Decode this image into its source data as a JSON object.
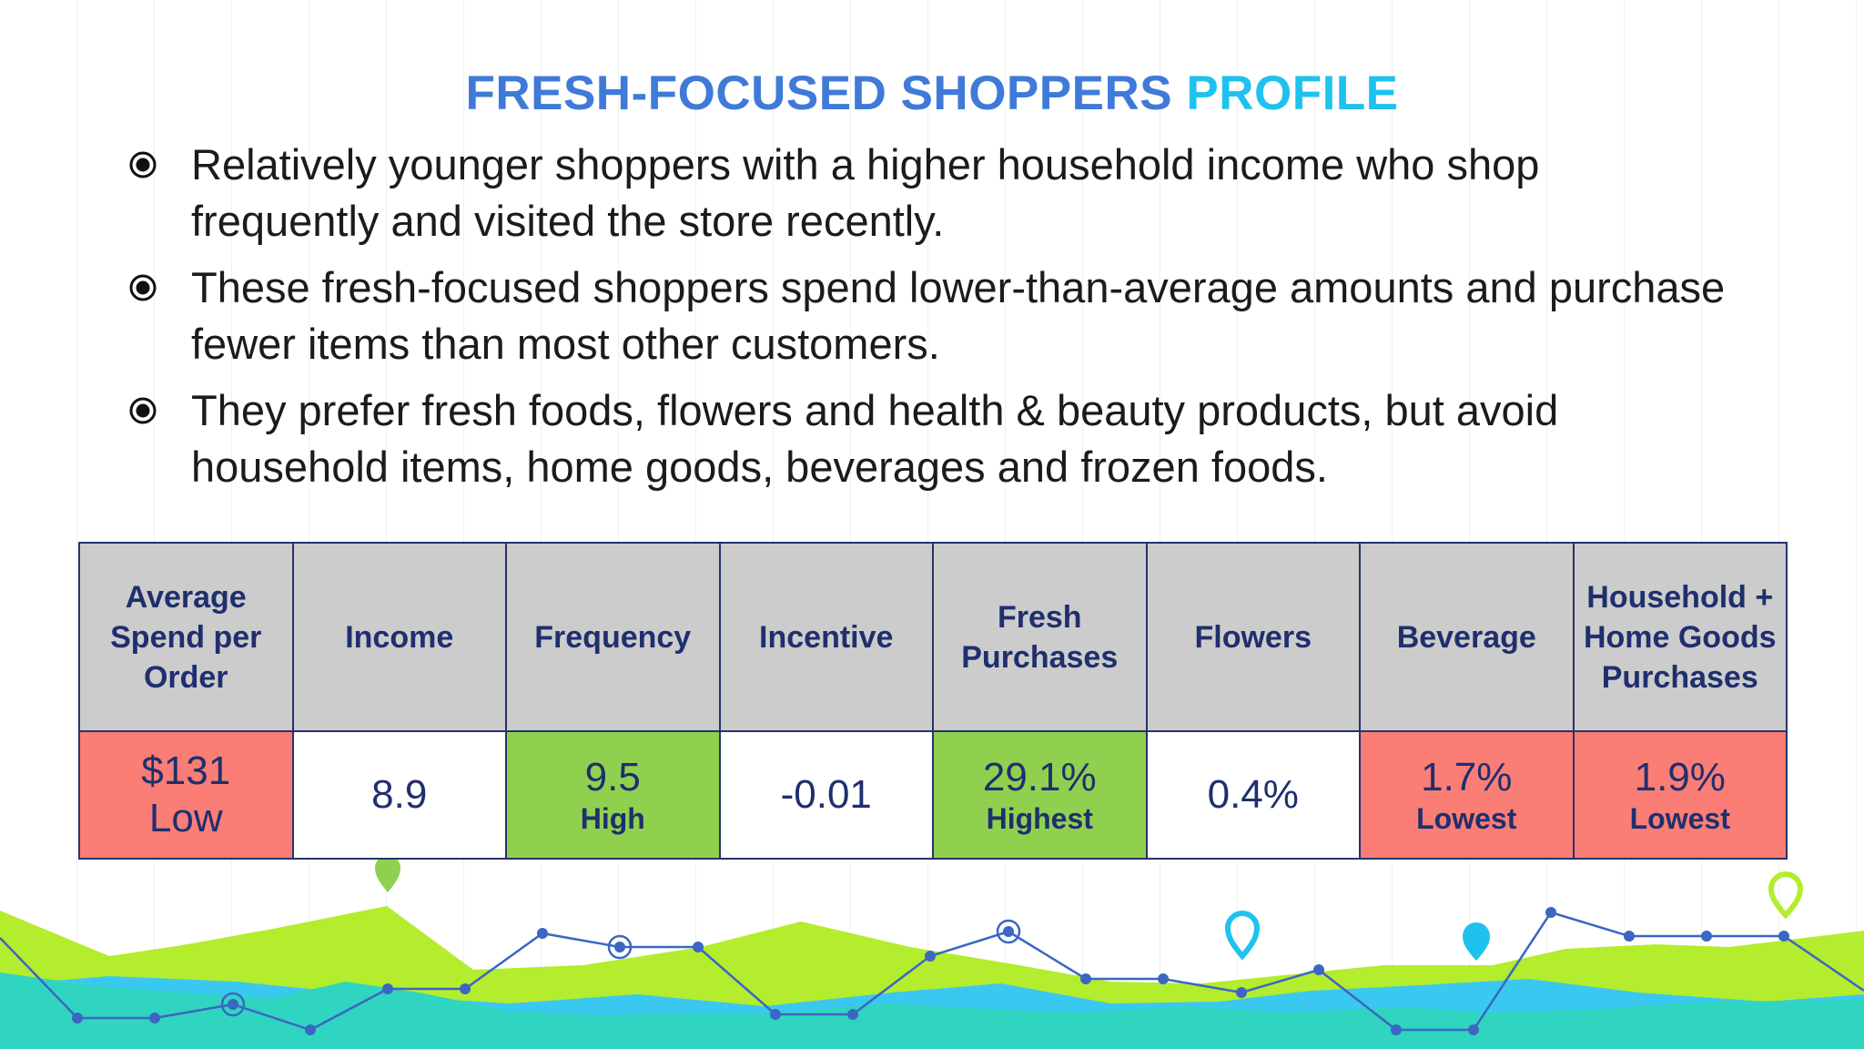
{
  "title": {
    "part1": "FRESH-FOCUSED SHOPPERS",
    "part2": "PROFILE"
  },
  "bullets": [
    "Relatively younger shoppers with a higher household income who shop frequently and visited the store recently.",
    "These fresh-focused shoppers spend lower-than-average amounts and purchase fewer items than most other customers.",
    "They prefer fresh foods, flowers and health & beauty products, but avoid household items, home goods, beverages and frozen foods."
  ],
  "table": {
    "headers": [
      "Average Spend per Order",
      "Income",
      "Frequency",
      "Incentive",
      "Fresh Purchases",
      "Flowers",
      "Beverage",
      "Household + Home Goods Purchases"
    ],
    "cells": [
      {
        "value": "$131",
        "label": "Low",
        "color": "#fa7d76"
      },
      {
        "value": "8.9",
        "label": "",
        "color": "#ffffff"
      },
      {
        "value": "9.5",
        "label": "High",
        "color": "#8fd14f"
      },
      {
        "value": "-0.01",
        "label": "",
        "color": "#ffffff"
      },
      {
        "value": "29.1%",
        "label": "Highest",
        "color": "#8fd14f"
      },
      {
        "value": "0.4%",
        "label": "",
        "color": "#ffffff"
      },
      {
        "value": "1.7%",
        "label": "Lowest",
        "color": "#fa7d76"
      },
      {
        "value": "1.9%",
        "label": "Lowest",
        "color": "#fa7d76"
      }
    ]
  },
  "colors": {
    "title_primary": "#3f7ad8",
    "title_accent": "#1fc2ee",
    "header_text": "#1f2f6e",
    "header_bg": "#cccccc",
    "low_bg": "#fa7d76",
    "high_bg": "#8fd14f",
    "deco_green": "#b4ec2e",
    "deco_teal": "#2fd5c0",
    "deco_blue": "#3bc8f0",
    "deco_line": "#3b66c4"
  },
  "icons": {
    "bullet": "radio-bullet-icon",
    "location": "map-pin-icon"
  }
}
